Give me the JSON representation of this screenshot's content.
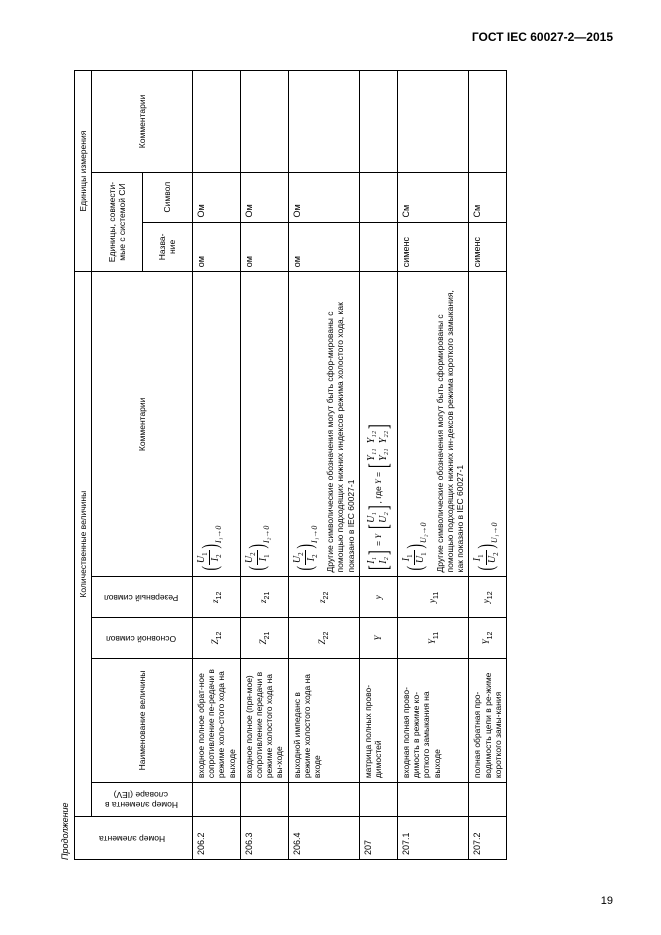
{
  "doc_header": "ГОСТ IEC 60027-2—2015",
  "continuation": "Продолжение",
  "page_number": "19",
  "headers": {
    "group_quant": "Количественные величины",
    "group_units": "Единицы измерения",
    "item_no": "Номер элемента",
    "iev_no": "Номер элемента в словаре (IEV)",
    "name": "Наименование величины",
    "main_symbol": "Основной символ",
    "reserve_symbol": "Резервный символ",
    "comments": "Комментарии",
    "unit_si_group": "Единицы, совмести-мые с системой СИ",
    "unit_name": "Назва-ние",
    "unit_symbol": "Символ",
    "unit_comments": "Комментарии"
  },
  "rows": [
    {
      "no": "206.2",
      "name": "входное полное обрат-ное сопротивление пе-редачи в режиме холо-стого хода на выходе",
      "symbol": "Z",
      "sym_sub": "12",
      "rsymbol": "z",
      "rsym_sub": "12",
      "formula_num": "U",
      "formula_num_sub": "1",
      "formula_den": "I",
      "formula_den_sub": "2",
      "cond": "I₁→0",
      "unit_name": "ом",
      "unit_symbol": "Ом"
    },
    {
      "no": "206.3",
      "name": "входное полное (пря-мое) сопротивление передачи в режиме холостого хода на вы-ходе",
      "symbol": "Z",
      "sym_sub": "21",
      "rsymbol": "z",
      "rsym_sub": "21",
      "formula_num": "U",
      "formula_num_sub": "2",
      "formula_den": "I",
      "formula_den_sub": "1",
      "cond": "I₂→0",
      "unit_name": "ом",
      "unit_symbol": "Ом"
    },
    {
      "no": "206.4",
      "name": "выходной импеданс в режиме холостого хода на входе",
      "symbol": "Z",
      "sym_sub": "22",
      "rsymbol": "z",
      "rsym_sub": "22",
      "formula_num": "U",
      "formula_num_sub": "2",
      "formula_den": "I",
      "formula_den_sub": "2",
      "cond": "I₁→0",
      "comment_extra": "Другие символические обозначения могут быть сфор-мированы с помощью подходящих нижних индексов режима холостого хода, как показано в IEC 60027-1",
      "unit_name": "ом",
      "unit_symbol": "Ом"
    },
    {
      "no": "207",
      "name": "матрица полных прово-димостей",
      "symbol": "Y",
      "sym_sub": "",
      "rsymbol": "y",
      "rsym_sub": "",
      "matrix": true,
      "matrix_label_where": ", где",
      "matrix_lhs_1": "I₁",
      "matrix_lhs_2": "I₂",
      "matrix_rhs_1": "U₁",
      "matrix_rhs_2": "U₂",
      "matrix_Y": "Y",
      "matrix_Y11": "Y₁₁",
      "matrix_Y12": "Y₁₂",
      "matrix_Y21": "Y₂₁",
      "matrix_Y22": "Y₂₂",
      "unit_name": "",
      "unit_symbol": ""
    },
    {
      "no": "207.1",
      "name": "входная полная прово-димость в режиме ко-роткого замыкания на выходе",
      "symbol": "Y",
      "sym_sub": "11",
      "rsymbol": "y",
      "rsym_sub": "11",
      "formula_num": "I",
      "formula_num_sub": "1",
      "formula_den": "U",
      "formula_den_sub": "1",
      "cond": "U₂→0",
      "comment_extra": "Другие символические обозначения могут быть сформированы с помощью подходящих нижних ин-дексов режима короткого замыкания, как показано в IEC 60027-1",
      "unit_name": "сименс",
      "unit_symbol": "См"
    },
    {
      "no": "207.2",
      "name": "полная обратная про-водимость цепи в ре-жиме короткого замы-кания",
      "symbol": "Y",
      "sym_sub": "12",
      "rsymbol": "y",
      "rsym_sub": "12",
      "formula_num": "I",
      "formula_num_sub": "1",
      "formula_den": "U",
      "formula_den_sub": "2",
      "cond": "U₁→0",
      "unit_name": "сименс",
      "unit_symbol": "См"
    }
  ]
}
